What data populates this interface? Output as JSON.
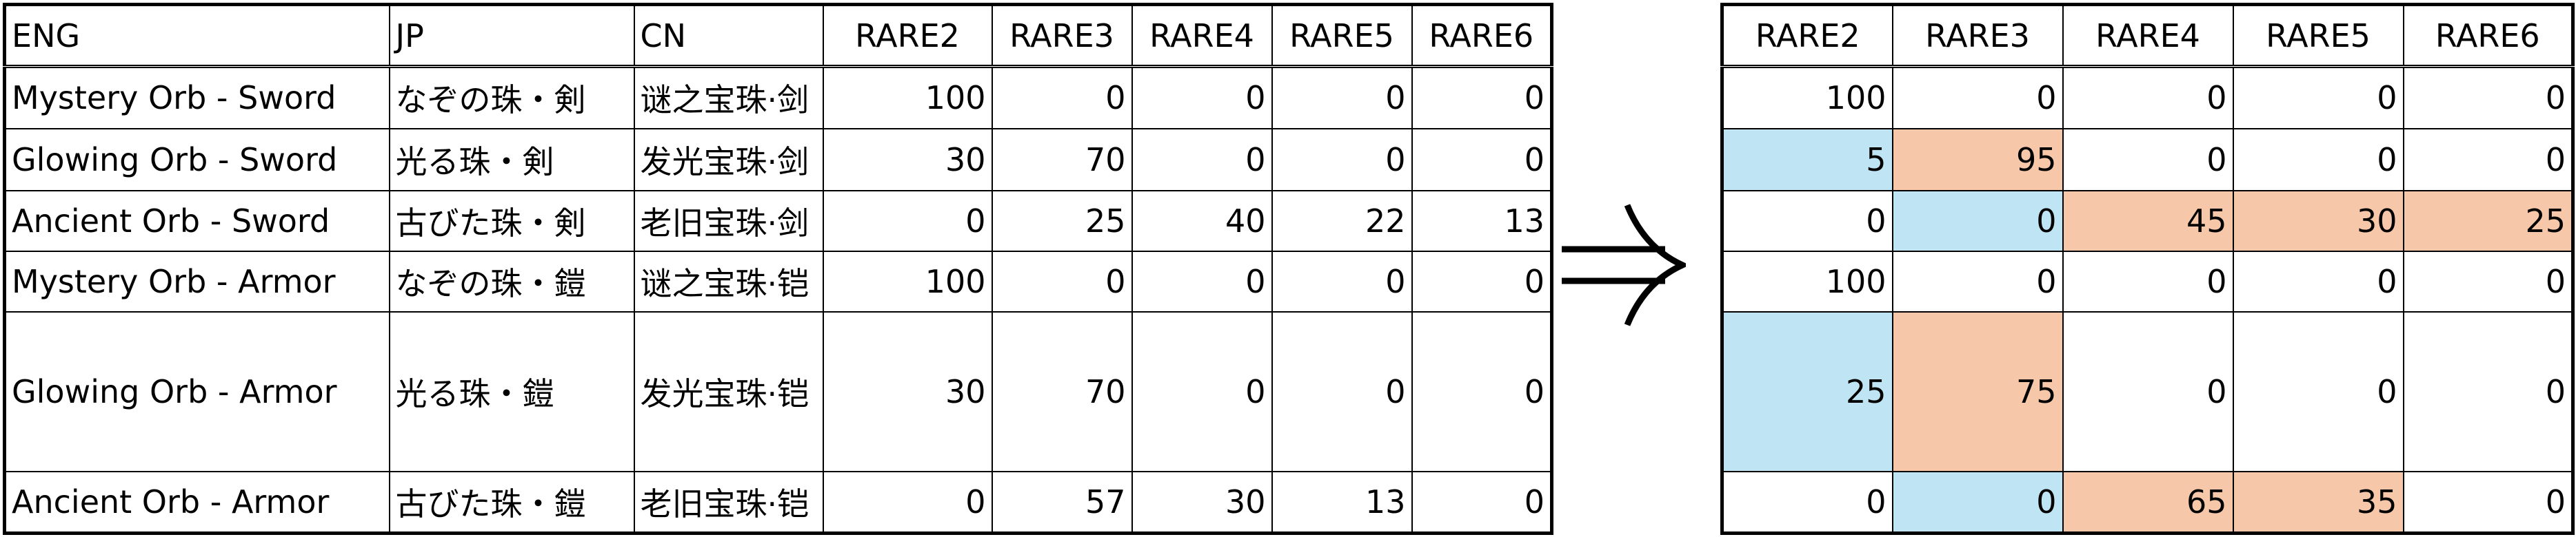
{
  "left": {
    "header": [
      "ENG",
      "JP",
      "CN",
      "RARE2",
      "RARE3",
      "RARE4",
      "RARE5",
      "RARE6"
    ],
    "rows": [
      [
        "Mystery Orb - Sword",
        "なぞの珠・剣",
        "谜之宝珠·剑",
        100,
        0,
        0,
        0,
        0
      ],
      [
        "Glowing Orb - Sword",
        "光る珠・剣",
        "发光宝珠·剑",
        30,
        70,
        0,
        0,
        0
      ],
      [
        "Ancient Orb - Sword",
        "古びた珠・剣",
        "老旧宝珠·剑",
        0,
        25,
        40,
        22,
        13
      ],
      [
        "Mystery Orb - Armor",
        "なぞの珠・鎧",
        "谜之宝珠·铠",
        100,
        0,
        0,
        0,
        0
      ],
      [
        "Glowing Orb - Armor",
        "光る珠・鎧",
        "发光宝珠·铠",
        30,
        70,
        0,
        0,
        0
      ],
      [
        "Ancient Orb - Armor",
        "古びた珠・鎧",
        "老旧宝珠·铠",
        0,
        57,
        30,
        13,
        0
      ]
    ]
  },
  "right": {
    "header": [
      "RARE2",
      "RARE3",
      "RARE4",
      "RARE5",
      "RARE6"
    ],
    "rows": [
      [
        100,
        0,
        0,
        0,
        0
      ],
      [
        5,
        95,
        0,
        0,
        0
      ],
      [
        0,
        0,
        45,
        30,
        25
      ],
      [
        100,
        0,
        0,
        0,
        0
      ],
      [
        25,
        75,
        0,
        0,
        0
      ],
      [
        0,
        0,
        65,
        35,
        0
      ]
    ],
    "cell_colors": [
      [
        null,
        null,
        null,
        null,
        null
      ],
      [
        "#bfe4f4",
        "#f7c7a9",
        null,
        null,
        null
      ],
      [
        null,
        "#bfe4f4",
        "#f7c7a9",
        "#f7c7a9",
        "#f7c7a9"
      ],
      [
        null,
        null,
        null,
        null,
        null
      ],
      [
        "#bfe4f4",
        "#f7c7a9",
        null,
        null,
        null
      ],
      [
        null,
        "#bfe4f4",
        "#f7c7a9",
        "#f7c7a9",
        null
      ]
    ]
  }
}
